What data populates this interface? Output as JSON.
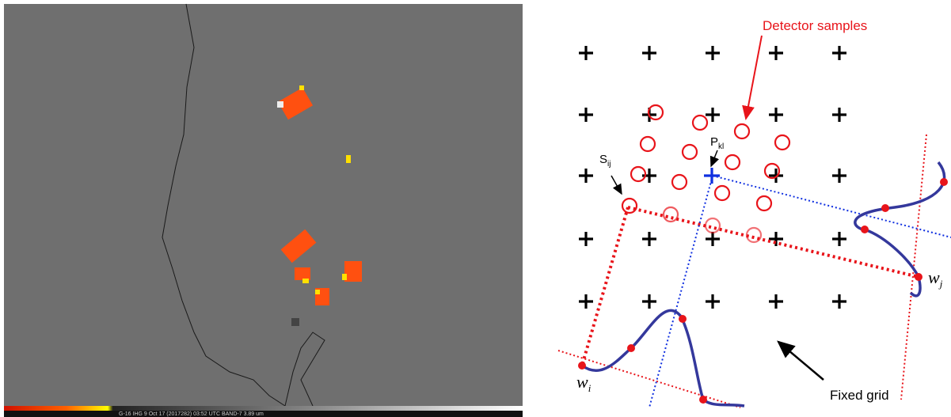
{
  "satellite_image": {
    "caption": "G-16 IHG   9 Oct 17  (2017282)  03:52 UTC  BAND-7  3.89 um"
  },
  "diagram": {
    "detector_label": "Detector samples",
    "grid_point_label": {
      "main": "P",
      "sub": "kl"
    },
    "sample_label": {
      "main": "S",
      "sub": "ij"
    },
    "weight_j_label": {
      "main": "w",
      "sub": "j"
    },
    "weight_i_label": {
      "main": "w",
      "sub": "i"
    },
    "fixed_grid_label": "Fixed grid"
  }
}
